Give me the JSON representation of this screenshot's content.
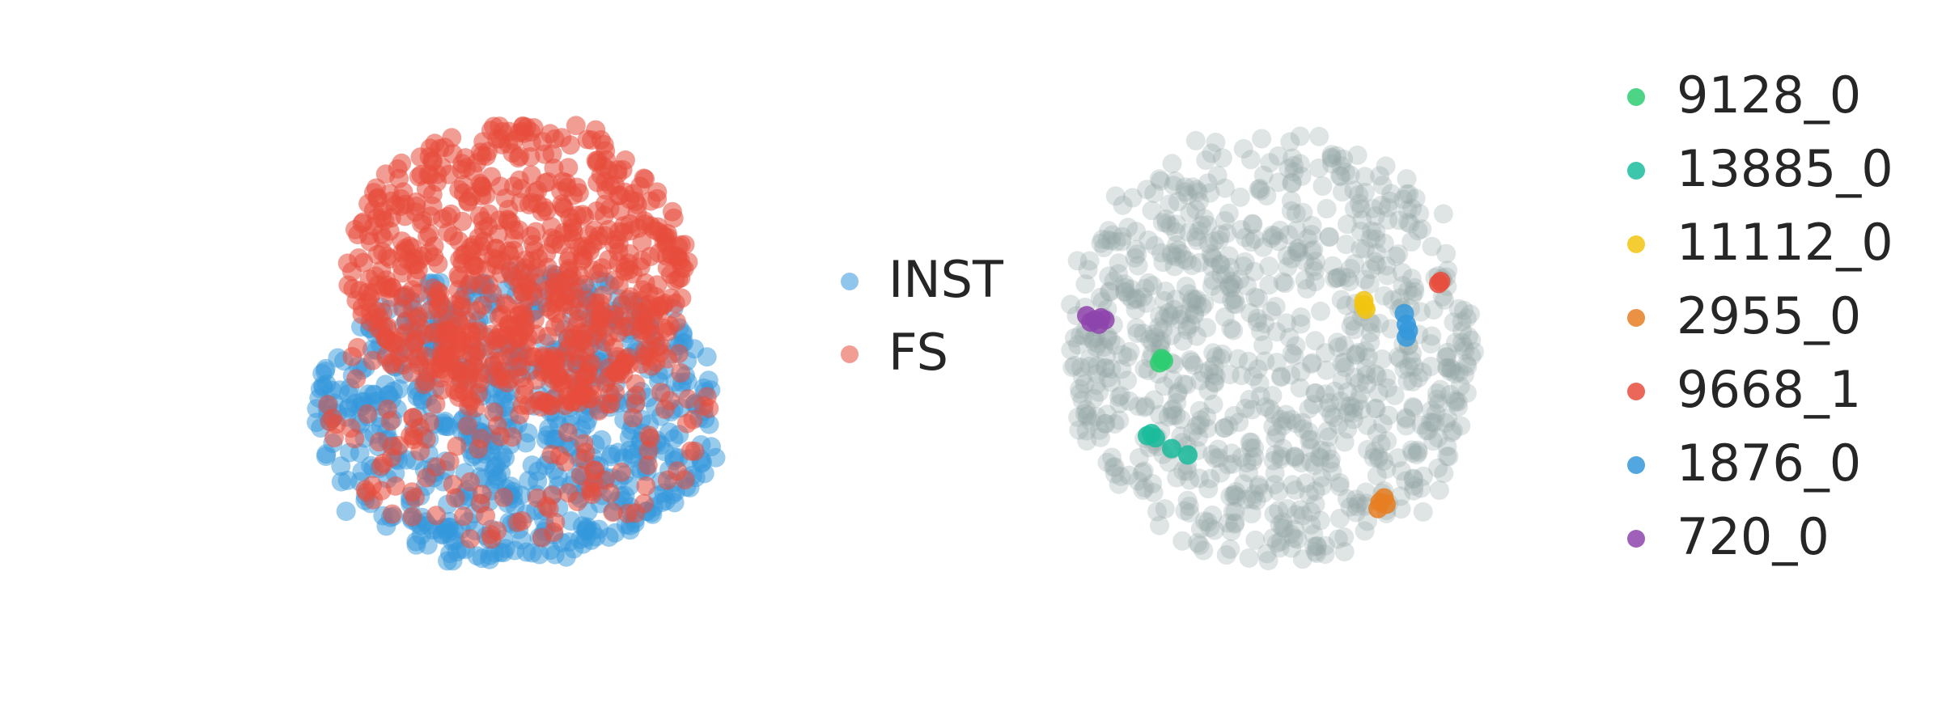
{
  "chart_data": [
    {
      "type": "scatter",
      "title": "",
      "xlabel": "",
      "ylabel": "",
      "axes_visible": false,
      "grid": false,
      "legend_placement": "right",
      "series": [
        {
          "name": "INST",
          "color": "#3498db",
          "region": {
            "x": [
              -1.0,
              1.0
            ],
            "y": [
              -1.0,
              0.35
            ]
          },
          "point_count": 700
        },
        {
          "name": "FS",
          "color": "#e74c3c",
          "region": {
            "x": [
              -0.85,
              0.85
            ],
            "y": [
              -0.3,
              1.0
            ]
          },
          "point_count": 900
        }
      ]
    },
    {
      "type": "scatter",
      "title": "",
      "xlabel": "",
      "ylabel": "",
      "axes_visible": false,
      "grid": false,
      "legend_placement": "right",
      "background_color": "#95a5a6",
      "background_point_count": 900,
      "series": [
        {
          "name": "9128_0",
          "color": "#2ecc71",
          "points": [
            [
              -0.55,
              -0.05
            ],
            [
              -0.56,
              -0.07
            ],
            [
              -0.54,
              -0.06
            ]
          ]
        },
        {
          "name": "13885_0",
          "color": "#1abc9c",
          "points": [
            [
              -0.6,
              -0.4
            ],
            [
              -0.58,
              -0.42
            ],
            [
              -0.62,
              -0.41
            ],
            [
              -0.5,
              -0.47
            ],
            [
              -0.42,
              -0.5
            ]
          ]
        },
        {
          "name": "11112_0",
          "color": "#f1c40f",
          "points": [
            [
              0.45,
              0.2
            ],
            [
              0.46,
              0.18
            ],
            [
              0.45,
              0.22
            ]
          ]
        },
        {
          "name": "2955_0",
          "color": "#e67e22",
          "points": [
            [
              0.53,
              -0.72
            ],
            [
              0.55,
              -0.7
            ],
            [
              0.52,
              -0.75
            ],
            [
              0.56,
              -0.73
            ]
          ]
        },
        {
          "name": "9668_1",
          "color": "#e74c3c",
          "points": [
            [
              0.82,
              0.3
            ],
            [
              0.83,
              0.31
            ]
          ]
        },
        {
          "name": "1876_0",
          "color": "#3498db",
          "points": [
            [
              0.65,
              0.16
            ],
            [
              0.66,
              0.11
            ],
            [
              0.66,
              0.05
            ],
            [
              0.67,
              0.08
            ]
          ]
        },
        {
          "name": "720_0",
          "color": "#8e44ad",
          "points": [
            [
              -0.92,
              0.15
            ],
            [
              -0.9,
              0.12
            ],
            [
              -0.88,
              0.13
            ],
            [
              -0.85,
              0.14
            ],
            [
              -0.86,
              0.11
            ],
            [
              -0.83,
              0.13
            ]
          ]
        }
      ]
    }
  ]
}
